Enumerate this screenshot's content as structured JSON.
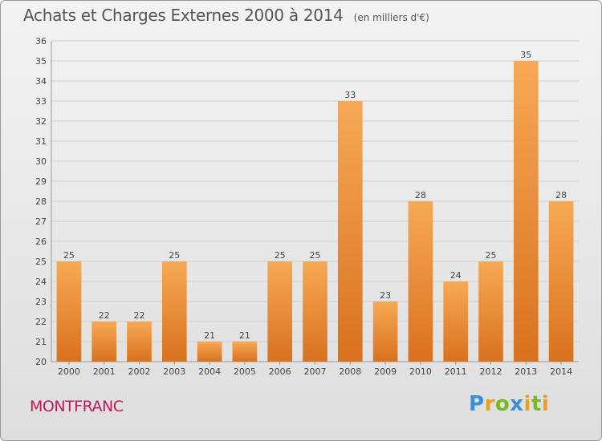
{
  "header": {
    "title": "Achats et Charges Externes 2000 à 2014",
    "unit": "(en milliers d'€)"
  },
  "footer": {
    "commune": "MONTFRANC",
    "logo": [
      "P",
      "r",
      "o",
      "x",
      "i",
      "t",
      "i"
    ]
  },
  "chart_data": {
    "type": "bar",
    "categories": [
      "2000",
      "2001",
      "2002",
      "2003",
      "2004",
      "2005",
      "2006",
      "2007",
      "2008",
      "2009",
      "2010",
      "2011",
      "2012",
      "2013",
      "2014"
    ],
    "values": [
      25,
      22,
      22,
      25,
      21,
      21,
      25,
      25,
      33,
      23,
      28,
      24,
      25,
      35,
      28
    ],
    "title": "Achats et Charges Externes 2000 à 2014",
    "subtitle": "(en milliers d'€)",
    "xlabel": "",
    "ylabel": "",
    "ylim": [
      20,
      36
    ],
    "yticks": [
      20,
      21,
      22,
      23,
      24,
      25,
      26,
      27,
      28,
      29,
      30,
      31,
      32,
      33,
      34,
      35,
      36
    ],
    "grid": true,
    "data_labels": true,
    "colors": {
      "bar_top": "#f7a955",
      "bar_bottom": "#d9711e",
      "grid": "#cfcfcf",
      "text": "#444444"
    }
  }
}
